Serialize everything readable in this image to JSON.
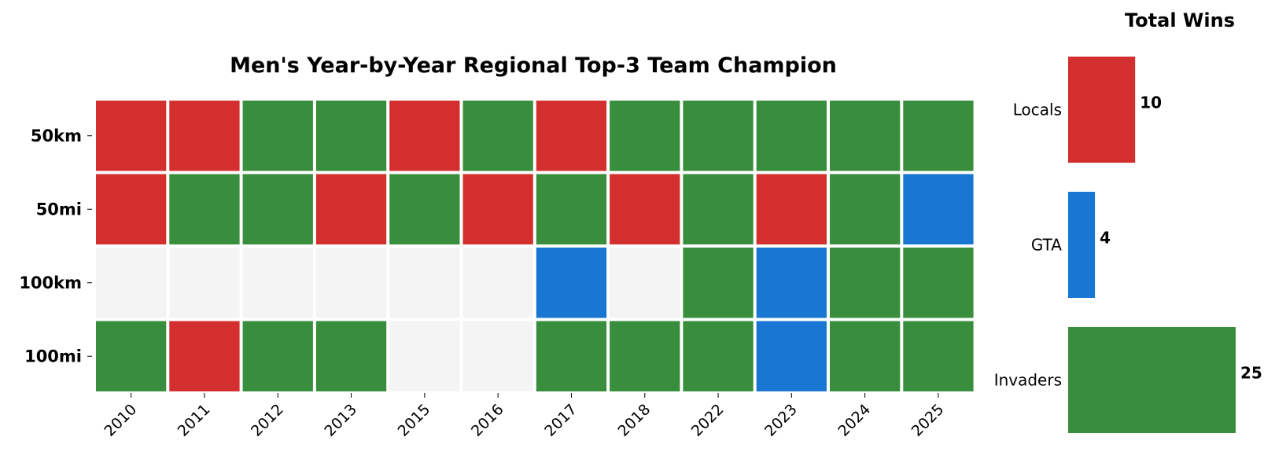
{
  "chart_data": [
    {
      "type": "heatmap",
      "title": "Men's Year-by-Year Regional Top-3 Team Champion",
      "x": [
        "2010",
        "2011",
        "2012",
        "2013",
        "2015",
        "2016",
        "2017",
        "2018",
        "2022",
        "2023",
        "2024",
        "2025"
      ],
      "y": [
        "50km",
        "50mi",
        "100km",
        "100mi"
      ],
      "values": [
        [
          "Locals",
          "Locals",
          "Invaders",
          "Invaders",
          "Locals",
          "Invaders",
          "Locals",
          "Invaders",
          "Invaders",
          "Invaders",
          "Invaders",
          "Invaders"
        ],
        [
          "Locals",
          "Invaders",
          "Invaders",
          "Locals",
          "Invaders",
          "Locals",
          "Invaders",
          "Locals",
          "Invaders",
          "Locals",
          "Invaders",
          "GTA"
        ],
        [
          null,
          null,
          null,
          null,
          null,
          null,
          "GTA",
          null,
          "Invaders",
          "GTA",
          "Invaders",
          "Invaders"
        ],
        [
          "Invaders",
          "Locals",
          "Invaders",
          "Invaders",
          null,
          null,
          "Invaders",
          "Invaders",
          "Invaders",
          "GTA",
          "Invaders",
          "Invaders"
        ]
      ],
      "colors": {
        "Locals": "#d32f2f",
        "GTA": "#1976d2",
        "Invaders": "#388e3c",
        "none": "#f4f4f4"
      },
      "grid": false
    },
    {
      "type": "bar",
      "orientation": "horizontal",
      "title": "Total Wins",
      "categories": [
        "Locals",
        "GTA",
        "Invaders"
      ],
      "values": [
        10,
        4,
        25
      ],
      "colors": [
        "#d32f2f",
        "#1976d2",
        "#388e3c"
      ],
      "xlim": [
        0,
        25
      ]
    }
  ]
}
